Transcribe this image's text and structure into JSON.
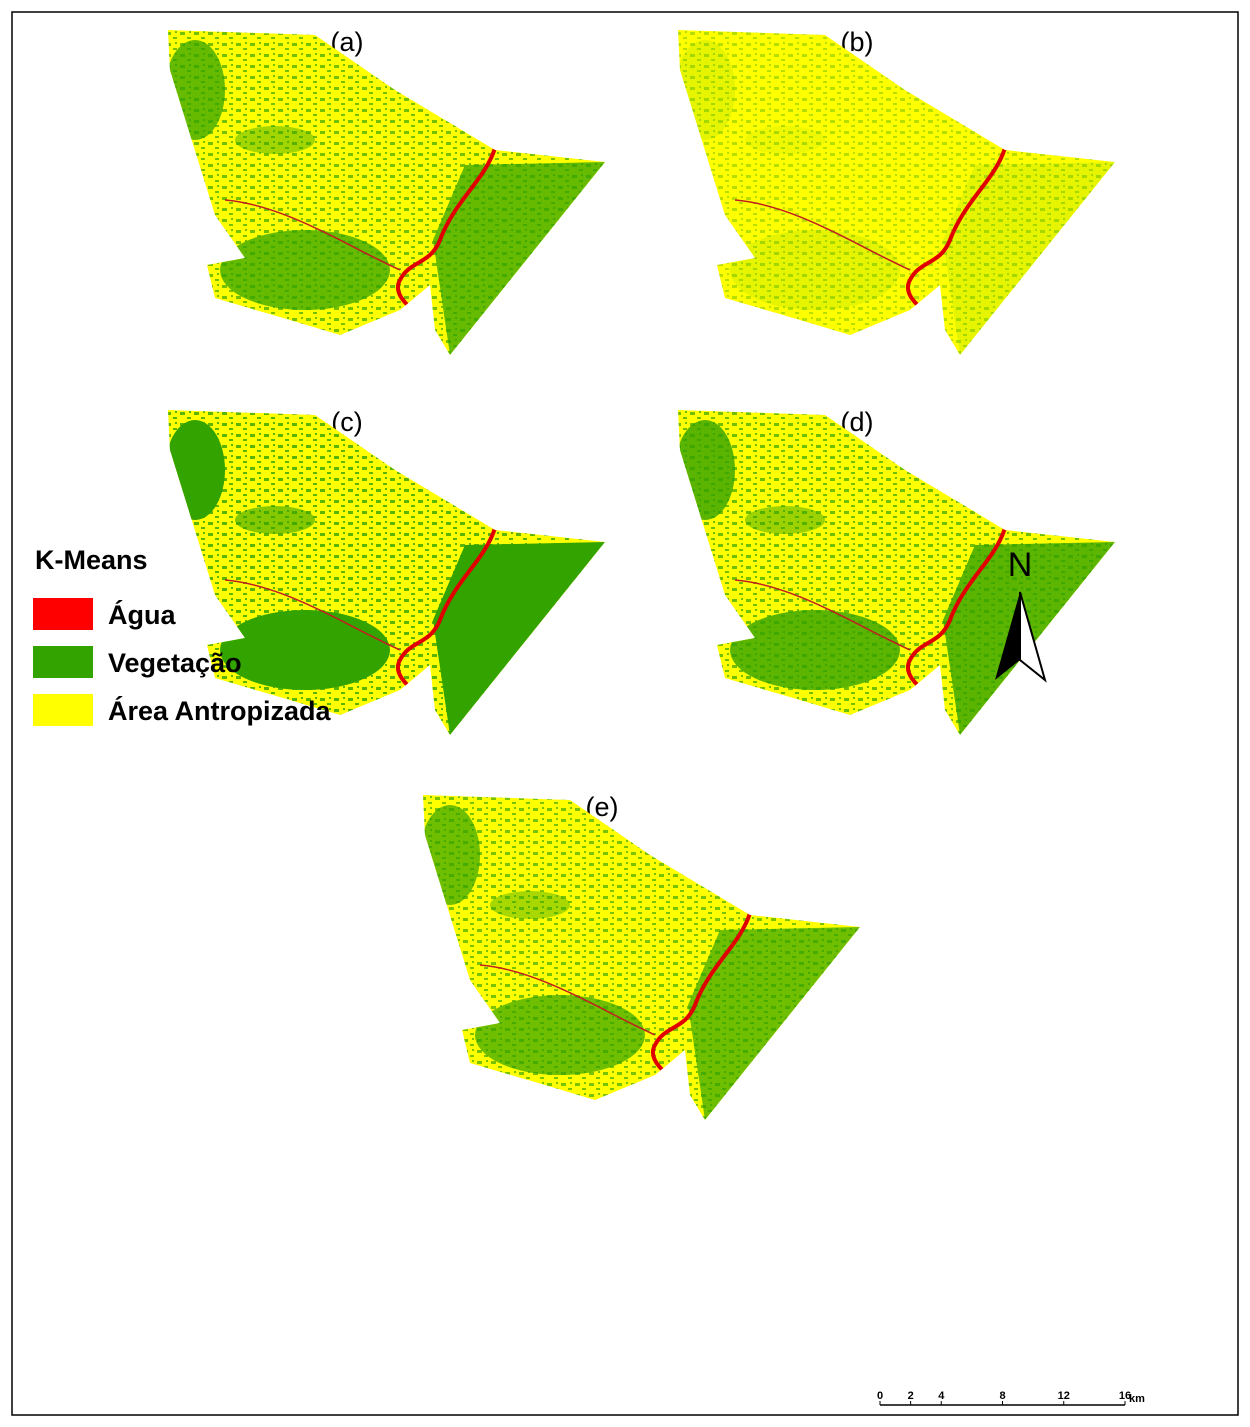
{
  "panels": [
    {
      "label": "(a)",
      "vegetation": 0.75
    },
    {
      "label": "(b)",
      "vegetation": 0.12
    },
    {
      "label": "(c)",
      "vegetation": 1
    },
    {
      "label": "(d)",
      "vegetation": 0.8
    },
    {
      "label": "(e)",
      "vegetation": 0.7
    }
  ],
  "legend": {
    "title": "K-Means",
    "items": [
      {
        "label": "Água",
        "color": "#ff0000"
      },
      {
        "label": "Vegetação",
        "color": "#33a300"
      },
      {
        "label": "Área Antropizada",
        "color": "#ffff00"
      }
    ]
  },
  "north": "N",
  "scale_bar": {
    "ticks": [
      0,
      2,
      4,
      8,
      12,
      16
    ],
    "unit": "km"
  }
}
